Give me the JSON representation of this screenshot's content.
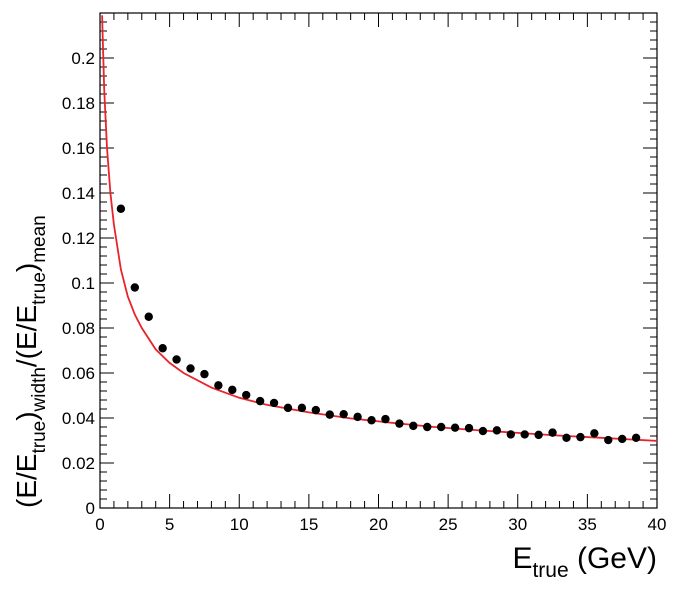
{
  "chart_data": {
    "type": "scatter",
    "xlabel_main": "E",
    "xlabel_sub": "true",
    "xlabel_tail": " (GeV)",
    "ylabel_parts": [
      {
        "t": "(E/E",
        "s": "n"
      },
      {
        "t": "true",
        "s": "sub"
      },
      {
        "t": ")",
        "s": "n"
      },
      {
        "t": "width",
        "s": "sub"
      },
      {
        "t": "/(E/E",
        "s": "n"
      },
      {
        "t": "true",
        "s": "sub"
      },
      {
        "t": ")",
        "s": "n"
      },
      {
        "t": "mean",
        "s": "sub"
      }
    ],
    "xlim": [
      0,
      40
    ],
    "ylim": [
      0,
      0.22
    ],
    "x_ticks": [
      0,
      5,
      10,
      15,
      20,
      25,
      30,
      35,
      40
    ],
    "y_ticks": [
      0,
      0.02,
      0.04,
      0.06,
      0.08,
      0.1,
      0.12,
      0.14,
      0.16,
      0.18,
      0.2
    ],
    "x_tick_labels": [
      "0",
      "5",
      "10",
      "15",
      "20",
      "25",
      "30",
      "35",
      "40"
    ],
    "y_tick_labels": [
      "0",
      "0.02",
      "0.04",
      "0.06",
      "0.08",
      "0.1",
      "0.12",
      "0.14",
      "0.16",
      "0.18",
      "0.2"
    ],
    "grid": false,
    "series": [
      {
        "kind": "points",
        "color": "#000000",
        "x": [
          1.5,
          2.5,
          3.5,
          4.5,
          5.5,
          6.5,
          7.5,
          8.5,
          9.5,
          10.5,
          11.5,
          12.5,
          13.5,
          14.5,
          15.5,
          16.5,
          17.5,
          18.5,
          19.5,
          20.5,
          21.5,
          22.5,
          23.5,
          24.5,
          25.5,
          26.5,
          27.5,
          28.5,
          29.5,
          30.5,
          31.5,
          32.5,
          33.5,
          34.5,
          35.5,
          36.5,
          37.5,
          38.5
        ],
        "y": [
          0.133,
          0.098,
          0.085,
          0.071,
          0.066,
          0.062,
          0.0595,
          0.0545,
          0.0525,
          0.0502,
          0.0475,
          0.0467,
          0.0445,
          0.0445,
          0.0435,
          0.0415,
          0.0417,
          0.0405,
          0.039,
          0.0395,
          0.0375,
          0.0365,
          0.036,
          0.036,
          0.0357,
          0.0355,
          0.0342,
          0.0345,
          0.0327,
          0.0327,
          0.0325,
          0.0335,
          0.0312,
          0.0315,
          0.0332,
          0.0302,
          0.0307,
          0.0312
        ]
      },
      {
        "kind": "fit",
        "color": "#e8242b",
        "x": [
          0.15,
          0.3,
          0.5,
          0.75,
          1,
          1.5,
          2,
          2.5,
          3,
          4,
          5,
          6,
          8,
          10,
          12,
          15,
          18,
          21,
          24,
          27,
          30,
          33,
          36,
          40
        ],
        "y": [
          0.219,
          0.186,
          0.16,
          0.14,
          0.126,
          0.106,
          0.094,
          0.086,
          0.08,
          0.0705,
          0.0645,
          0.06,
          0.0535,
          0.049,
          0.0458,
          0.0425,
          0.0398,
          0.0378,
          0.036,
          0.0346,
          0.0334,
          0.0322,
          0.0312,
          0.0298
        ]
      }
    ]
  }
}
